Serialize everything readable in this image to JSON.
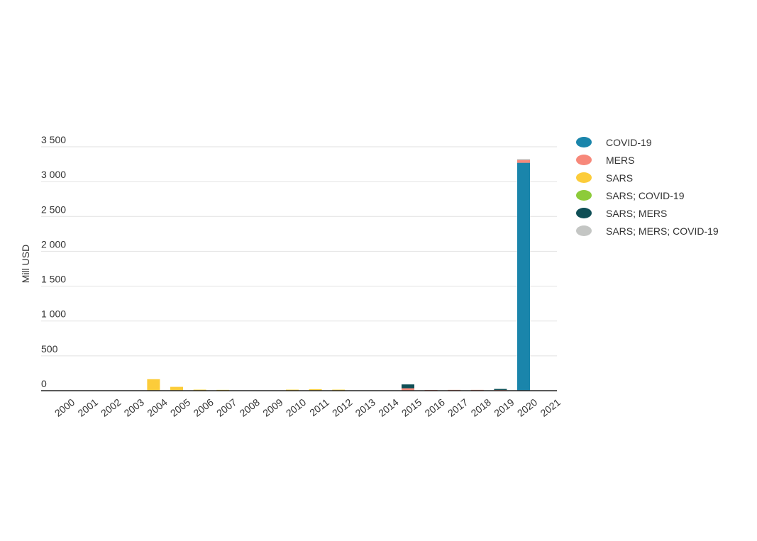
{
  "chart_data": {
    "type": "bar",
    "stacked": true,
    "ylabel": "Mill USD",
    "ylim": [
      0,
      3500
    ],
    "yticks": [
      0,
      500,
      1000,
      1500,
      2000,
      2500,
      3000,
      3500
    ],
    "ytick_labels": [
      "0",
      "500",
      "1 000",
      "1 500",
      "2 000",
      "2 500",
      "3 000",
      "3 500"
    ],
    "grid": true,
    "legend_position": "right",
    "categories": [
      "2000",
      "2001",
      "2002",
      "2003",
      "2004",
      "2005",
      "2006",
      "2007",
      "2008",
      "2009",
      "2010",
      "2011",
      "2012",
      "2013",
      "2014",
      "2015",
      "2016",
      "2017",
      "2018",
      "2019",
      "2020",
      "2021"
    ],
    "series": [
      {
        "name": "COVID-19",
        "color": "#1a85ab",
        "values": [
          0,
          0,
          0,
          0,
          0,
          0,
          0,
          0,
          0,
          0,
          0,
          0,
          0,
          0,
          0,
          0,
          0,
          0,
          0,
          0,
          3270,
          0
        ]
      },
      {
        "name": "MERS",
        "color": "#f7887a",
        "values": [
          0,
          0,
          0,
          0,
          0,
          0,
          0,
          0,
          0,
          0,
          0,
          0,
          0,
          0,
          0,
          35,
          10,
          12,
          12,
          15,
          40,
          0
        ]
      },
      {
        "name": "SARS",
        "color": "#fccc3a",
        "values": [
          0,
          0,
          0,
          0,
          165,
          55,
          15,
          12,
          0,
          0,
          15,
          22,
          15,
          0,
          0,
          0,
          0,
          0,
          0,
          0,
          0,
          0
        ]
      },
      {
        "name": "SARS; COVID-19",
        "color": "#8dcb3a",
        "values": [
          0,
          0,
          0,
          0,
          0,
          0,
          0,
          0,
          0,
          0,
          0,
          0,
          0,
          0,
          0,
          0,
          0,
          0,
          0,
          0,
          0,
          0
        ]
      },
      {
        "name": "SARS; MERS",
        "color": "#0f4f56",
        "values": [
          0,
          0,
          0,
          0,
          0,
          0,
          0,
          0,
          0,
          0,
          0,
          0,
          0,
          0,
          0,
          55,
          0,
          0,
          0,
          10,
          0,
          0
        ]
      },
      {
        "name": "SARS; MERS; COVID-19",
        "color": "#c4c6c4",
        "values": [
          0,
          0,
          0,
          0,
          0,
          0,
          0,
          0,
          0,
          0,
          0,
          0,
          0,
          0,
          0,
          0,
          0,
          0,
          0,
          0,
          15,
          0
        ]
      }
    ]
  }
}
